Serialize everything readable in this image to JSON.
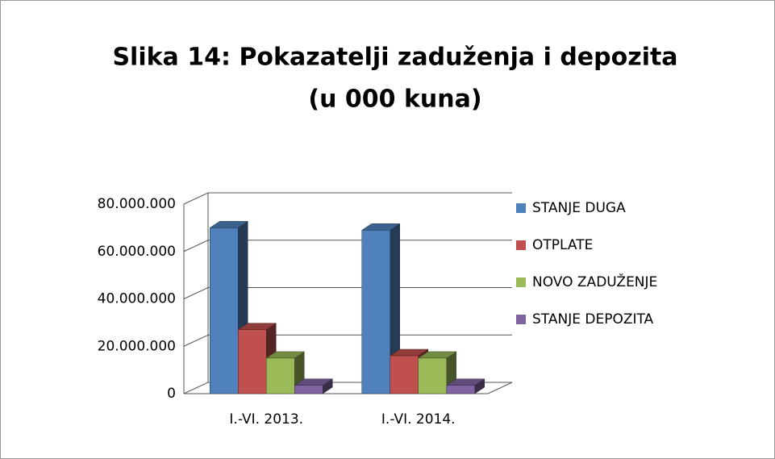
{
  "chart_data": {
    "type": "bar3d",
    "title": "Slika 14: Pokazatelji zaduženja i depozita",
    "subtitle": "(u 000 kuna)",
    "categories": [
      "I.-VI. 2013.",
      "I.-VI. 2014."
    ],
    "series": [
      {
        "name": "STANJE DUGA",
        "color": "#4f81bd",
        "values": [
          70000000,
          69000000
        ]
      },
      {
        "name": "OTPLATE",
        "color": "#c0504d",
        "values": [
          27000000,
          16000000
        ]
      },
      {
        "name": "NOVO ZADUŽENJE",
        "color": "#9bbb59",
        "values": [
          15000000,
          15000000
        ]
      },
      {
        "name": "STANJE DEPOZITA",
        "color": "#8064a2",
        "values": [
          3500000,
          3500000
        ]
      }
    ],
    "ylim": [
      0,
      80000000
    ],
    "yticks": [
      0,
      {
        "value": 20000000,
        "label": "20.000.000"
      },
      {
        "value": 40000000,
        "label": "40.000.000"
      },
      {
        "value": 60000000,
        "label": "60.000.000"
      },
      {
        "value": 80000000,
        "label": "80.000.000"
      }
    ],
    "grid": true,
    "legend": "right"
  }
}
